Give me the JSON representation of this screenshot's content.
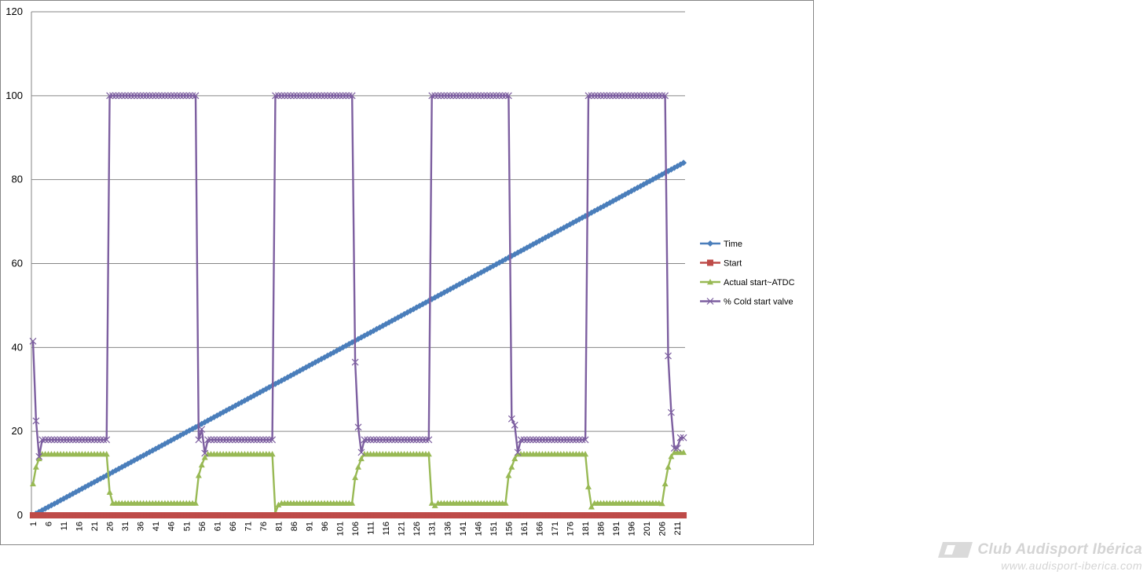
{
  "watermark": {
    "line1": "Club Audisport Ibérica",
    "line2": "www.audisport-iberica.com"
  },
  "chart_data": {
    "type": "line",
    "title": "",
    "xlabel": "",
    "ylabel": "",
    "ylim": [
      0,
      120
    ],
    "yticks": [
      0,
      20,
      40,
      60,
      80,
      100,
      120
    ],
    "xlim": [
      1,
      213
    ],
    "x_tick_labels": [
      "1",
      "6",
      "11",
      "16",
      "21",
      "26",
      "31",
      "36",
      "41",
      "46",
      "51",
      "56",
      "61",
      "66",
      "71",
      "76",
      "81",
      "86",
      "91",
      "96",
      "101",
      "106",
      "111",
      "116",
      "121",
      "126",
      "131",
      "136",
      "141",
      "146",
      "151",
      "156",
      "161",
      "166",
      "171",
      "176",
      "181",
      "186",
      "191",
      "196",
      "201",
      "206",
      "211"
    ],
    "grid": "horizontal",
    "legend_position": "right",
    "series": [
      {
        "name": "Time",
        "color": "#4a7ebb",
        "marker": "diamond",
        "generator": "linear",
        "x_start": 1,
        "x_end": 213,
        "y_start": 0.0,
        "y_end": 84.0,
        "values": []
      },
      {
        "name": "Start",
        "color": "#be4b48",
        "marker": "square",
        "generator": "constant",
        "x_start": 1,
        "x_end": 213,
        "y_value": 0,
        "values": []
      },
      {
        "name": "Actual start~ATDC",
        "color": "#98b954",
        "marker": "triangle",
        "generator": "cycle",
        "x_start": 1,
        "x_end": 213,
        "values": [],
        "segments": [
          {
            "from": 1,
            "to": 1,
            "value": 7.5
          },
          {
            "from": 2,
            "to": 2,
            "value": 11.5
          },
          {
            "from": 3,
            "to": 3,
            "value": 13.5
          },
          {
            "from": 4,
            "to": 25,
            "value": 14.6
          },
          {
            "from": 26,
            "to": 26,
            "value": 5.5
          },
          {
            "from": 27,
            "to": 54,
            "value": 2.9
          },
          {
            "from": 55,
            "to": 55,
            "value": 9.5
          },
          {
            "from": 56,
            "to": 56,
            "value": 12.0
          },
          {
            "from": 57,
            "to": 57,
            "value": 13.8
          },
          {
            "from": 58,
            "to": 79,
            "value": 14.6
          },
          {
            "from": 80,
            "to": 80,
            "value": 0.6
          },
          {
            "from": 81,
            "to": 81,
            "value": 2.5
          },
          {
            "from": 82,
            "to": 105,
            "value": 2.9
          },
          {
            "from": 106,
            "to": 106,
            "value": 9.0
          },
          {
            "from": 107,
            "to": 107,
            "value": 11.5
          },
          {
            "from": 108,
            "to": 108,
            "value": 13.5
          },
          {
            "from": 109,
            "to": 130,
            "value": 14.6
          },
          {
            "from": 131,
            "to": 131,
            "value": 2.9
          },
          {
            "from": 132,
            "to": 132,
            "value": 2.3
          },
          {
            "from": 133,
            "to": 155,
            "value": 2.9
          },
          {
            "from": 156,
            "to": 156,
            "value": 9.5
          },
          {
            "from": 157,
            "to": 157,
            "value": 11.5
          },
          {
            "from": 158,
            "to": 158,
            "value": 13.5
          },
          {
            "from": 159,
            "to": 181,
            "value": 14.6
          },
          {
            "from": 182,
            "to": 182,
            "value": 6.8
          },
          {
            "from": 183,
            "to": 183,
            "value": 2.0
          },
          {
            "from": 184,
            "to": 205,
            "value": 2.9
          },
          {
            "from": 206,
            "to": 206,
            "value": 2.8
          },
          {
            "from": 207,
            "to": 207,
            "value": 7.5
          },
          {
            "from": 208,
            "to": 208,
            "value": 11.5
          },
          {
            "from": 209,
            "to": 209,
            "value": 14.0
          },
          {
            "from": 210,
            "to": 213,
            "value": 15.0
          }
        ]
      },
      {
        "name": "% Cold start valve",
        "color": "#7d5fa0",
        "marker": "x",
        "generator": "cycle",
        "x_start": 1,
        "x_end": 213,
        "values": [],
        "segments": [
          {
            "from": 1,
            "to": 1,
            "value": 41.5
          },
          {
            "from": 2,
            "to": 2,
            "value": 22.5
          },
          {
            "from": 3,
            "to": 3,
            "value": 14.0
          },
          {
            "from": 4,
            "to": 25,
            "value": 18.0
          },
          {
            "from": 26,
            "to": 53,
            "value": 100
          },
          {
            "from": 54,
            "to": 54,
            "value": 100
          },
          {
            "from": 55,
            "to": 55,
            "value": 18.0
          },
          {
            "from": 56,
            "to": 56,
            "value": 20.5
          },
          {
            "from": 57,
            "to": 57,
            "value": 14.8
          },
          {
            "from": 58,
            "to": 79,
            "value": 18.0
          },
          {
            "from": 80,
            "to": 105,
            "value": 100
          },
          {
            "from": 106,
            "to": 106,
            "value": 36.5
          },
          {
            "from": 107,
            "to": 107,
            "value": 21.0
          },
          {
            "from": 108,
            "to": 108,
            "value": 15.0
          },
          {
            "from": 109,
            "to": 130,
            "value": 18.0
          },
          {
            "from": 131,
            "to": 156,
            "value": 100
          },
          {
            "from": 157,
            "to": 157,
            "value": 23.0
          },
          {
            "from": 158,
            "to": 158,
            "value": 21.5
          },
          {
            "from": 159,
            "to": 159,
            "value": 15.0
          },
          {
            "from": 160,
            "to": 181,
            "value": 18.0
          },
          {
            "from": 182,
            "to": 207,
            "value": 100
          },
          {
            "from": 208,
            "to": 208,
            "value": 38.0
          },
          {
            "from": 209,
            "to": 209,
            "value": 24.5
          },
          {
            "from": 210,
            "to": 210,
            "value": 16.0
          },
          {
            "from": 211,
            "to": 211,
            "value": 16.0
          },
          {
            "from": 212,
            "to": 213,
            "value": 18.5
          }
        ]
      }
    ]
  }
}
